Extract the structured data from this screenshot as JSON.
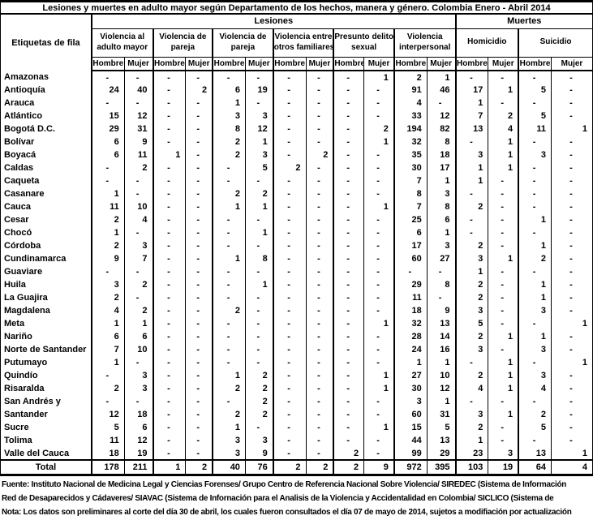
{
  "title": "Lesiones y muertes en adulto mayor según Departamento de los hechos, manera y género. Colombia Enero - Abril 2014",
  "colors": {
    "background": "#ffffff",
    "text": "#000000",
    "border": "#000000"
  },
  "table": {
    "row_header_label": "Etiquetas de fila",
    "super_groups": [
      {
        "label": "Lesiones",
        "span": 12
      },
      {
        "label": "Muertes",
        "span": 4
      }
    ],
    "groups": [
      {
        "label": "Violencia al adulto mayor",
        "lines": [
          "Violencia al",
          "adulto mayor"
        ]
      },
      {
        "label": "Violencia de pareja",
        "lines": [
          "Violencia de",
          "pareja"
        ]
      },
      {
        "label": "Violencia de pareja",
        "lines": [
          "Violencia de",
          "pareja"
        ]
      },
      {
        "label": "Violencia entre otros familiares",
        "lines": [
          "Violencia entre",
          "otros familiares"
        ]
      },
      {
        "label": "Presunto delito sexual",
        "lines": [
          "Presunto delito",
          "sexual"
        ]
      },
      {
        "label": "Violencia interpersonal",
        "lines": [
          "Violencia",
          "interpersonal"
        ]
      },
      {
        "label": "Homicidio",
        "lines": [
          "Homicidio"
        ]
      },
      {
        "label": "Suicidio",
        "lines": [
          "Suicidio"
        ]
      }
    ],
    "gender_labels": [
      "Hombre",
      "Mujer"
    ],
    "rows": [
      {
        "label": "Amazonas",
        "values": [
          "-",
          "-",
          "-",
          "-",
          "-",
          "-",
          "-",
          "-",
          "-",
          "1",
          "2",
          "1",
          "-",
          "-",
          "-",
          "-"
        ]
      },
      {
        "label": "Antioquía",
        "values": [
          "24",
          "40",
          "-",
          "2",
          "6",
          "19",
          "-",
          "-",
          "-",
          "-",
          "91",
          "46",
          "17",
          "1",
          "5",
          "-"
        ]
      },
      {
        "label": "Arauca",
        "values": [
          "-",
          "-",
          "-",
          "-",
          "1",
          "-",
          "-",
          "-",
          "-",
          "-",
          "4",
          "-",
          "1",
          "-",
          "-",
          "-"
        ]
      },
      {
        "label": "Atlántico",
        "values": [
          "15",
          "12",
          "-",
          "-",
          "3",
          "3",
          "-",
          "-",
          "-",
          "-",
          "33",
          "12",
          "7",
          "2",
          "5",
          "-"
        ]
      },
      {
        "label": "Bogotá D.C.",
        "values": [
          "29",
          "31",
          "-",
          "-",
          "8",
          "12",
          "-",
          "-",
          "-",
          "2",
          "194",
          "82",
          "13",
          "4",
          "11",
          "1"
        ]
      },
      {
        "label": "Bolívar",
        "values": [
          "6",
          "9",
          "-",
          "-",
          "2",
          "1",
          "-",
          "-",
          "-",
          "1",
          "32",
          "8",
          "-",
          "1",
          "-",
          "-"
        ]
      },
      {
        "label": "Boyacá",
        "values": [
          "6",
          "11",
          "1",
          "-",
          "2",
          "3",
          "-",
          "2",
          "-",
          "-",
          "35",
          "18",
          "3",
          "1",
          "3",
          "-"
        ]
      },
      {
        "label": "Caldas",
        "values": [
          "-",
          "2",
          "-",
          "-",
          "-",
          "5",
          "2",
          "-",
          "-",
          "-",
          "30",
          "17",
          "1",
          "1",
          "-",
          "-"
        ]
      },
      {
        "label": "Caqueta",
        "values": [
          "-",
          "-",
          "-",
          "-",
          "-",
          "-",
          "-",
          "-",
          "-",
          "-",
          "7",
          "1",
          "1",
          "-",
          "-",
          "-"
        ]
      },
      {
        "label": "Casanare",
        "values": [
          "1",
          "-",
          "-",
          "-",
          "2",
          "2",
          "-",
          "-",
          "-",
          "-",
          "8",
          "3",
          "-",
          "-",
          "-",
          "-"
        ]
      },
      {
        "label": "Cauca",
        "values": [
          "11",
          "10",
          "-",
          "-",
          "1",
          "1",
          "-",
          "-",
          "-",
          "1",
          "7",
          "8",
          "2",
          "-",
          "-",
          "-"
        ]
      },
      {
        "label": "Cesar",
        "values": [
          "2",
          "4",
          "-",
          "-",
          "-",
          "-",
          "-",
          "-",
          "-",
          "-",
          "25",
          "6",
          "-",
          "-",
          "1",
          "-"
        ]
      },
      {
        "label": "Chocó",
        "values": [
          "1",
          "-",
          "-",
          "-",
          "-",
          "1",
          "-",
          "-",
          "-",
          "-",
          "6",
          "1",
          "-",
          "-",
          "-",
          "-"
        ]
      },
      {
        "label": "Córdoba",
        "values": [
          "2",
          "3",
          "-",
          "-",
          "-",
          "-",
          "-",
          "-",
          "-",
          "-",
          "17",
          "3",
          "2",
          "-",
          "1",
          "-"
        ]
      },
      {
        "label": "Cundinamarca",
        "values": [
          "9",
          "7",
          "-",
          "-",
          "1",
          "8",
          "-",
          "-",
          "-",
          "-",
          "60",
          "27",
          "3",
          "1",
          "2",
          "-"
        ]
      },
      {
        "label": "Guaviare",
        "values": [
          "-",
          "-",
          "-",
          "-",
          "-",
          "-",
          "-",
          "-",
          "-",
          "-",
          "-",
          "-",
          "1",
          "-",
          "-",
          "-"
        ]
      },
      {
        "label": "Huila",
        "values": [
          "3",
          "2",
          "-",
          "-",
          "-",
          "1",
          "-",
          "-",
          "-",
          "-",
          "29",
          "8",
          "2",
          "-",
          "1",
          "-"
        ]
      },
      {
        "label": "La Guajira",
        "values": [
          "2",
          "-",
          "-",
          "-",
          "-",
          "-",
          "-",
          "-",
          "-",
          "-",
          "11",
          "-",
          "2",
          "-",
          "1",
          "-"
        ]
      },
      {
        "label": "Magdalena",
        "values": [
          "4",
          "2",
          "-",
          "-",
          "2",
          "-",
          "-",
          "-",
          "-",
          "-",
          "18",
          "9",
          "3",
          "-",
          "3",
          "-"
        ]
      },
      {
        "label": "Meta",
        "values": [
          "1",
          "1",
          "-",
          "-",
          "-",
          "-",
          "-",
          "-",
          "-",
          "1",
          "32",
          "13",
          "5",
          "-",
          "-",
          "1"
        ]
      },
      {
        "label": "Nariño",
        "values": [
          "6",
          "6",
          "-",
          "-",
          "-",
          "-",
          "-",
          "-",
          "-",
          "-",
          "28",
          "14",
          "2",
          "1",
          "1",
          "-"
        ]
      },
      {
        "label": "Norte de Santander",
        "values": [
          "7",
          "10",
          "-",
          "-",
          "-",
          "-",
          "-",
          "-",
          "-",
          "-",
          "24",
          "16",
          "3",
          "-",
          "3",
          "-"
        ]
      },
      {
        "label": "Putumayo",
        "values": [
          "1",
          "-",
          "-",
          "-",
          "-",
          "-",
          "-",
          "-",
          "-",
          "-",
          "1",
          "1",
          "-",
          "1",
          "-",
          "1"
        ]
      },
      {
        "label": "Quindío",
        "values": [
          "-",
          "3",
          "-",
          "-",
          "1",
          "2",
          "-",
          "-",
          "-",
          "1",
          "27",
          "10",
          "2",
          "1",
          "3",
          "-"
        ]
      },
      {
        "label": "Risaralda",
        "values": [
          "2",
          "3",
          "-",
          "-",
          "2",
          "2",
          "-",
          "-",
          "-",
          "1",
          "30",
          "12",
          "4",
          "1",
          "4",
          "-"
        ]
      },
      {
        "label": "San Andrés y",
        "values": [
          "-",
          "-",
          "-",
          "-",
          "-",
          "2",
          "-",
          "-",
          "-",
          "-",
          "3",
          "1",
          "-",
          "-",
          "-",
          "-"
        ]
      },
      {
        "label": "Santander",
        "values": [
          "12",
          "18",
          "-",
          "-",
          "2",
          "2",
          "-",
          "-",
          "-",
          "-",
          "60",
          "31",
          "3",
          "1",
          "2",
          "-"
        ]
      },
      {
        "label": "Sucre",
        "values": [
          "5",
          "6",
          "-",
          "-",
          "1",
          "-",
          "-",
          "-",
          "-",
          "1",
          "15",
          "5",
          "2",
          "-",
          "5",
          "-"
        ]
      },
      {
        "label": "Tolima",
        "values": [
          "11",
          "12",
          "-",
          "-",
          "3",
          "3",
          "-",
          "-",
          "-",
          "-",
          "44",
          "13",
          "1",
          "-",
          "-",
          "-"
        ]
      },
      {
        "label": "Valle del Cauca",
        "values": [
          "18",
          "19",
          "-",
          "-",
          "3",
          "9",
          "-",
          "-",
          "2",
          "-",
          "99",
          "29",
          "23",
          "3",
          "13",
          "1"
        ]
      }
    ],
    "total": {
      "label": "Total",
      "values": [
        "178",
        "211",
        "1",
        "2",
        "40",
        "76",
        "2",
        "2",
        "2",
        "9",
        "972",
        "395",
        "103",
        "19",
        "64",
        "4"
      ]
    }
  },
  "footer": {
    "lines": [
      "Fuente: Instituto Nacional de Medicina Legal y Ciencias Forenses/ Grupo Centro de Referencia Nacional Sobre Violencia/ SIREDEC (Sistema de Información",
      "Red de Desaparecidos y Cádaveres/ SIAVAC (Sistema de Infornación para el Analisis de la Violencia y Accidentalidad en Colombia/ SICLICO (Sistema de",
      "Nota: Los datos son preliminares al corte del día 30 de abril, los cuales fueron consultados el día 07 de mayo de 2014, sujetos a modifiación por actualización"
    ]
  }
}
